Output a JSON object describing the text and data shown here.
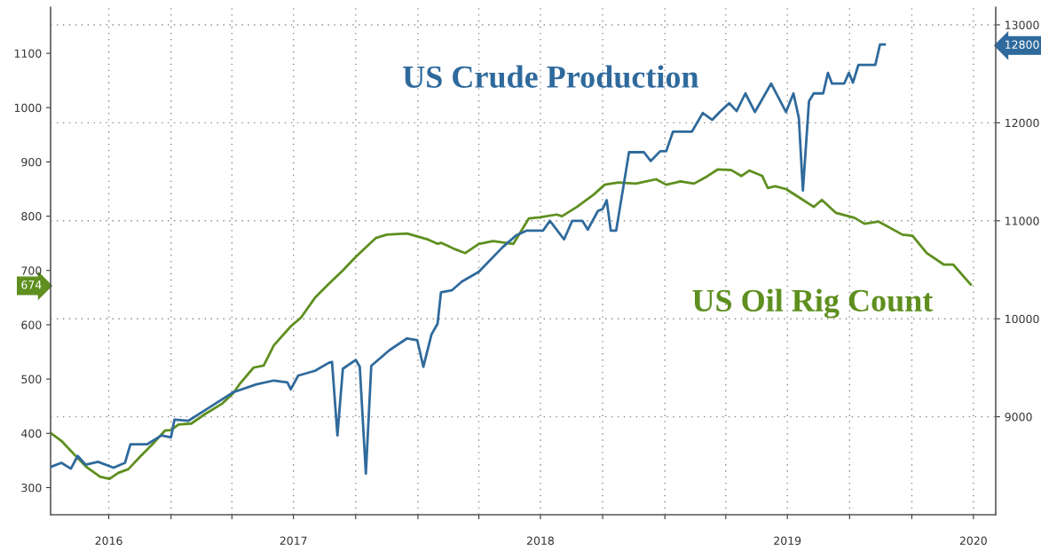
{
  "chart_data": {
    "type": "line",
    "xlim": [
      "2016-07-07",
      "2020-05-04"
    ],
    "xticks": [
      {
        "value": "2016-10-01",
        "label": "2016"
      },
      {
        "value": "2017-01-01",
        "label": null
      },
      {
        "value": "2017-04-01",
        "label": null
      },
      {
        "value": "2017-07-01",
        "label": "2017"
      },
      {
        "value": "2017-10-01",
        "label": null
      },
      {
        "value": "2018-01-01",
        "label": null
      },
      {
        "value": "2018-04-01",
        "label": null
      },
      {
        "value": "2018-07-01",
        "label": "2018"
      },
      {
        "value": "2018-10-01",
        "label": null
      },
      {
        "value": "2019-01-01",
        "label": null
      },
      {
        "value": "2019-04-01",
        "label": null
      },
      {
        "value": "2019-07-01",
        "label": "2019"
      },
      {
        "value": "2019-10-01",
        "label": null
      },
      {
        "value": "2020-01-01",
        "label": null
      },
      {
        "value": "2020-04-01",
        "label": "2020"
      }
    ],
    "ylim": [
      250,
      1185
    ],
    "yticks": [
      300,
      400,
      500,
      600,
      674,
      700,
      800,
      900,
      1000,
      1100
    ],
    "y2lim": [
      8000,
      13180
    ],
    "y2ticks": [
      9000,
      10000,
      11000,
      12000,
      12800,
      13000
    ],
    "grid": true,
    "series": [
      {
        "name": "US Crude Production",
        "color": "#2f6a9c",
        "axis": "y2",
        "x": [
          "2016-07-08",
          "2016-07-23",
          "2016-08-06",
          "2016-08-16",
          "2016-08-28",
          "2016-09-15",
          "2016-10-08",
          "2016-10-25",
          "2016-11-02",
          "2016-11-27",
          "2016-12-18",
          "2017-01-01",
          "2017-01-06",
          "2017-01-27",
          "2017-02-21",
          "2017-04-03",
          "2017-05-07",
          "2017-06-02",
          "2017-06-22",
          "2017-06-27",
          "2017-07-08",
          "2017-08-02",
          "2017-08-22",
          "2017-08-27",
          "2017-09-04",
          "2017-09-12",
          "2017-10-01",
          "2017-10-07",
          "2017-10-16",
          "2017-10-24",
          "2017-11-20",
          "2017-12-16",
          "2017-12-31",
          "2018-01-09",
          "2018-01-21",
          "2018-01-30",
          "2018-02-04",
          "2018-02-20",
          "2018-03-07",
          "2018-04-01",
          "2018-05-06",
          "2018-05-26",
          "2018-06-11",
          "2018-07-05",
          "2018-07-15",
          "2018-08-05",
          "2018-08-17",
          "2018-09-01",
          "2018-09-09",
          "2018-09-24",
          "2018-10-01",
          "2018-10-07",
          "2018-10-13",
          "2018-10-21",
          "2018-11-09",
          "2018-12-01",
          "2018-12-11",
          "2018-12-25",
          "2019-01-03",
          "2019-01-13",
          "2019-02-10",
          "2019-02-26",
          "2019-03-12",
          "2019-03-23",
          "2019-04-06",
          "2019-04-17",
          "2019-04-30",
          "2019-05-14",
          "2019-06-07",
          "2019-06-29",
          "2019-07-10",
          "2019-07-18",
          "2019-07-24",
          "2019-08-02",
          "2019-08-09",
          "2019-08-23",
          "2019-08-30",
          "2019-09-05",
          "2019-09-23",
          "2019-09-30",
          "2019-10-06",
          "2019-10-14",
          "2019-11-08",
          "2019-11-15",
          "2019-11-22"
        ],
        "values": [
          8490,
          8530,
          8470,
          8600,
          8510,
          8540,
          8480,
          8530,
          8720,
          8720,
          8810,
          8790,
          8970,
          8960,
          9070,
          9250,
          9330,
          9370,
          9350,
          9280,
          9420,
          9470,
          9550,
          9560,
          8810,
          9490,
          9580,
          9510,
          8420,
          9520,
          9680,
          9800,
          9780,
          9510,
          9840,
          9950,
          10270,
          10290,
          10380,
          10480,
          10730,
          10850,
          10900,
          10900,
          11000,
          10810,
          11000,
          11000,
          10910,
          11100,
          11120,
          11210,
          10900,
          10900,
          11700,
          11700,
          11610,
          11710,
          11710,
          11910,
          11910,
          12100,
          12030,
          12110,
          12200,
          12120,
          12300,
          12110,
          12400,
          12110,
          12300,
          12050,
          11310,
          12220,
          12300,
          12300,
          12510,
          12400,
          12400,
          12510,
          12410,
          12590,
          12590,
          12800,
          12800
        ]
      },
      {
        "name": "US Oil Rig Count",
        "color": "#5e8f1f",
        "axis": "y",
        "x": [
          "2016-07-08",
          "2016-07-23",
          "2016-08-11",
          "2016-08-28",
          "2016-09-18",
          "2016-10-02",
          "2016-10-15",
          "2016-10-30",
          "2016-11-17",
          "2016-12-07",
          "2016-12-23",
          "2017-01-01",
          "2017-01-12",
          "2017-01-31",
          "2017-02-21",
          "2017-03-18",
          "2017-04-03",
          "2017-04-12",
          "2017-05-03",
          "2017-05-18",
          "2017-06-02",
          "2017-06-27",
          "2017-07-12",
          "2017-08-02",
          "2017-08-22",
          "2017-09-12",
          "2017-10-01",
          "2017-10-31",
          "2017-11-16",
          "2017-12-16",
          "2018-01-16",
          "2018-01-30",
          "2018-02-04",
          "2018-02-25",
          "2018-03-12",
          "2018-04-01",
          "2018-04-22",
          "2018-05-22",
          "2018-06-14",
          "2018-06-30",
          "2018-07-25",
          "2018-08-02",
          "2018-08-24",
          "2018-09-18",
          "2018-10-04",
          "2018-10-24",
          "2018-11-19",
          "2018-12-19",
          "2019-01-03",
          "2019-01-24",
          "2019-02-13",
          "2019-03-04",
          "2019-03-20",
          "2019-04-09",
          "2019-04-24",
          "2019-05-06",
          "2019-05-25",
          "2019-06-02",
          "2019-06-13",
          "2019-06-29",
          "2019-07-19",
          "2019-08-09",
          "2019-08-21",
          "2019-09-11",
          "2019-10-08",
          "2019-10-23",
          "2019-11-13",
          "2019-12-18",
          "2020-01-02",
          "2020-01-23",
          "2020-02-17",
          "2020-03-02",
          "2020-03-28"
        ],
        "values": [
          400,
          386,
          361,
          339,
          320,
          316,
          327,
          334,
          358,
          383,
          405,
          406,
          416,
          418,
          436,
          455,
          474,
          490,
          521,
          525,
          562,
          597,
          613,
          650,
          675,
          700,
          725,
          760,
          766,
          768,
          757,
          749,
          751,
          739,
          732,
          749,
          754,
          749,
          796,
          798,
          803,
          800,
          817,
          840,
          858,
          862,
          860,
          868,
          858,
          864,
          860,
          873,
          886,
          885,
          874,
          884,
          874,
          852,
          855,
          850,
          834,
          817,
          830,
          806,
          797,
          786,
          790,
          766,
          764,
          732,
          711,
          711,
          674
        ]
      }
    ]
  }
}
